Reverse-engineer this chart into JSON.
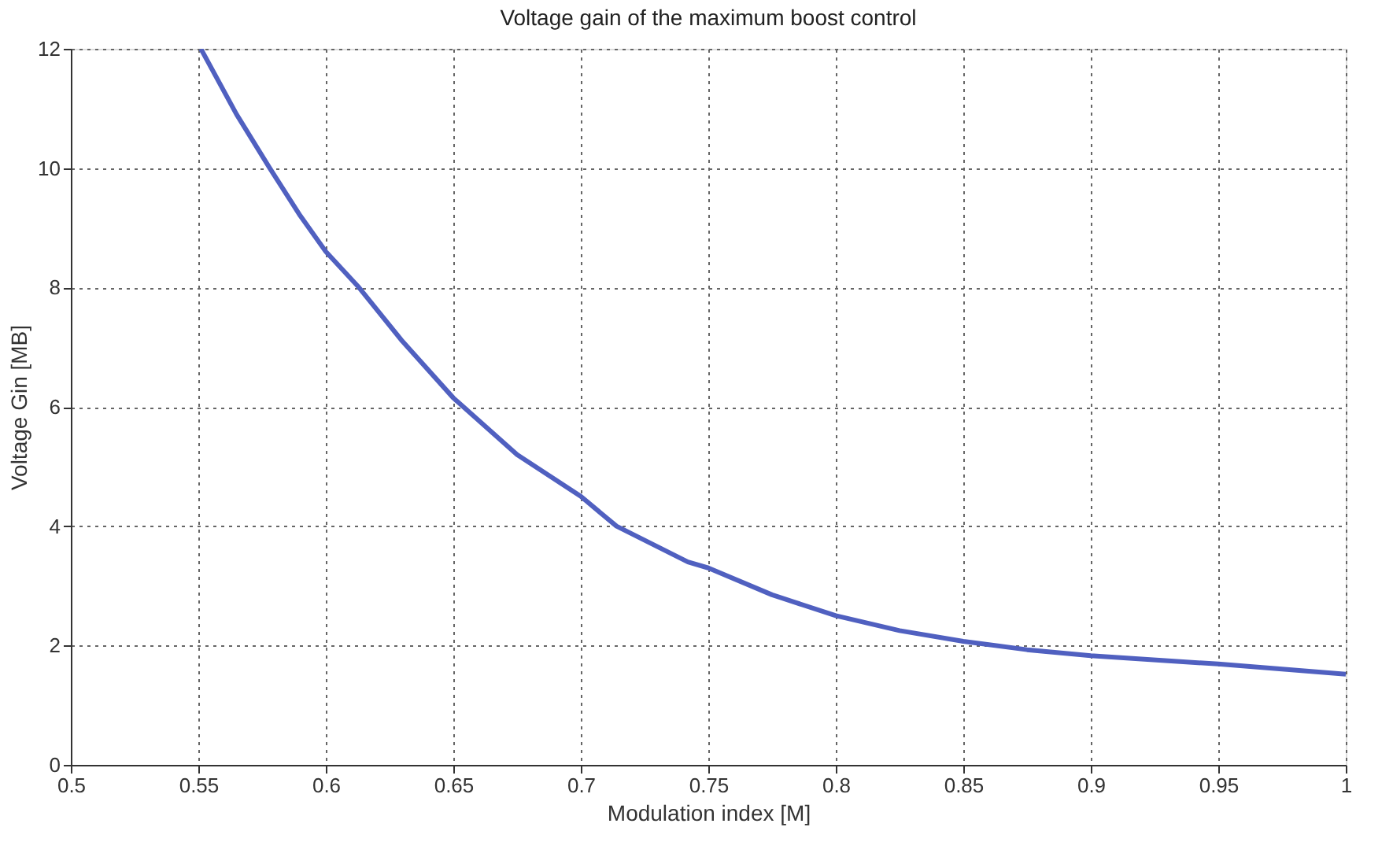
{
  "chart_data": {
    "type": "line",
    "title": "Voltage gain of the maximum boost control",
    "xlabel": "Modulation index [M]",
    "ylabel": "Voltage Gin [MB]",
    "x": [
      0.551,
      0.565,
      0.578,
      0.59,
      0.6,
      0.613,
      0.63,
      0.65,
      0.675,
      0.7,
      0.714,
      0.742,
      0.75,
      0.775,
      0.8,
      0.825,
      0.85,
      0.875,
      0.9,
      0.95,
      1.0
    ],
    "series": [
      {
        "color": "#5060c0",
        "values": [
          12,
          10.9,
          10,
          9.2,
          8.6,
          8,
          7.1,
          6.15,
          5.2,
          4.5,
          4,
          3.4,
          3.3,
          2.85,
          2.5,
          2.25,
          2.07,
          1.93,
          1.83,
          1.69,
          1.52
        ]
      }
    ],
    "xlim": [
      0.5,
      1
    ],
    "xticks": [
      0.5,
      0.55,
      0.6,
      0.65,
      0.7,
      0.75,
      0.8,
      0.85,
      0.9,
      0.95,
      1
    ],
    "ylim": [
      0,
      12
    ],
    "yticks": [
      0,
      2,
      4,
      6,
      8,
      10,
      12
    ],
    "grid": true,
    "line_style": "solid",
    "marker": "none"
  }
}
